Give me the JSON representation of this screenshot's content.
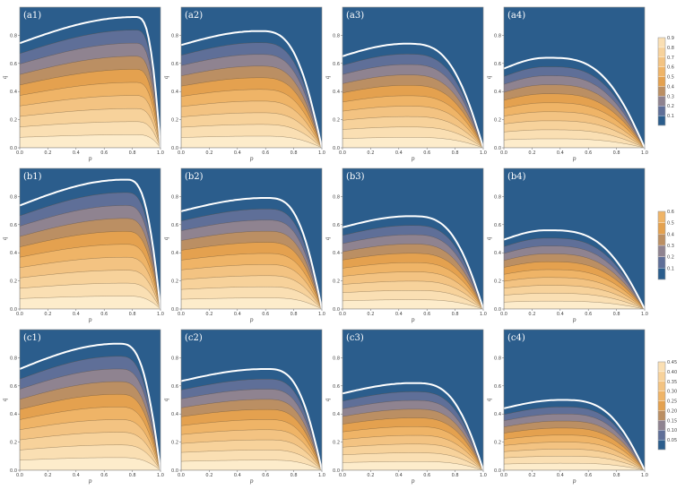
{
  "chart_data": {
    "type": "contour",
    "layout": "3 rows x 4 columns of filled contour plots, one colorbar per row",
    "x_axis": {
      "label": "p",
      "ticks": [
        "0.0",
        "0.2",
        "0.4",
        "0.6",
        "0.8",
        "1.0"
      ],
      "range": [
        0,
        1
      ]
    },
    "y_axis": {
      "label": "q",
      "ticks": [
        "0.0",
        "0.2",
        "0.4",
        "0.6",
        "0.8",
        "1.0"
      ],
      "range": [
        0,
        1
      ]
    },
    "colors": {
      "zero_region": "#2b5d8c",
      "boundary_line": "#ffffff",
      "contour_line": "#5a4a32",
      "ramp": [
        "#2b5d8c",
        "#5f6f98",
        "#8f8390",
        "#bb8f63",
        "#e4a14f",
        "#efb467",
        "#f3c382",
        "#f7d29b",
        "#fadfb3",
        "#fdeccb"
      ]
    },
    "rows": [
      {
        "row": "a",
        "panels": [
          {
            "label": "(a1)",
            "boundary_peak": [
              0.82,
              0.93
            ]
          },
          {
            "label": "(a2)",
            "boundary_peak": [
              0.55,
              0.83
            ]
          },
          {
            "label": "(a3)",
            "boundary_peak": [
              0.45,
              0.74
            ]
          },
          {
            "label": "(a4)",
            "boundary_peak": [
              0.3,
              0.64
            ]
          }
        ],
        "colorbar": {
          "levels": [
            "0.1",
            "0.2",
            "0.3",
            "0.4",
            "0.5",
            "0.6",
            "0.7",
            "0.8",
            "0.9"
          ]
        }
      },
      {
        "row": "b",
        "panels": [
          {
            "label": "(b1)",
            "boundary_peak": [
              0.75,
              0.92
            ]
          },
          {
            "label": "(b2)",
            "boundary_peak": [
              0.6,
              0.79
            ]
          },
          {
            "label": "(b3)",
            "boundary_peak": [
              0.48,
              0.66
            ]
          },
          {
            "label": "(b4)",
            "boundary_peak": [
              0.3,
              0.56
            ]
          }
        ],
        "colorbar": {
          "levels": [
            "0.1",
            "0.2",
            "0.3",
            "0.4",
            "0.5",
            "0.6"
          ]
        }
      },
      {
        "row": "c",
        "panels": [
          {
            "label": "(c1)",
            "boundary_peak": [
              0.7,
              0.9
            ]
          },
          {
            "label": "(c2)",
            "boundary_peak": [
              0.6,
              0.72
            ]
          },
          {
            "label": "(c3)",
            "boundary_peak": [
              0.5,
              0.62
            ]
          },
          {
            "label": "(c4)",
            "boundary_peak": [
              0.4,
              0.5
            ]
          }
        ],
        "colorbar": {
          "levels": [
            "0.05",
            "0.10",
            "0.15",
            "0.20",
            "0.25",
            "0.30",
            "0.35",
            "0.40",
            "0.45"
          ]
        }
      }
    ]
  }
}
